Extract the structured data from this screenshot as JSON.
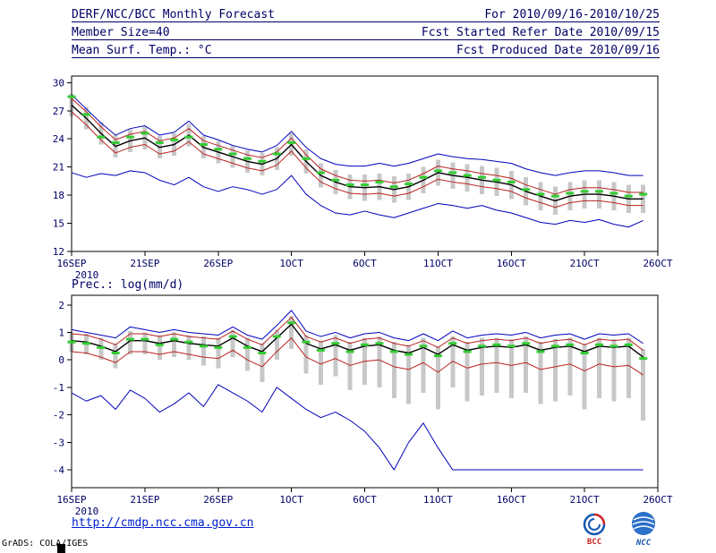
{
  "header": {
    "rows": [
      {
        "left": "DERF/NCC/BCC Monthly Forecast",
        "right": "For 2010/09/16-2010/10/25"
      },
      {
        "left": "Member Size=40",
        "right": "Fcst Started Refer Date 2010/09/15"
      },
      {
        "left": "Mean Surf. Temp.: °C",
        "right": "Fcst Produced Date 2010/09/16"
      }
    ]
  },
  "footer": {
    "url": "http://cmdp.ncc.cma.gov.cn",
    "logo_left": "BCC",
    "logo_right": "NCC",
    "credit": "GrADS: COLA/IGES"
  },
  "colors": {
    "text": "#000066",
    "frame": "#000000",
    "max_min_line": "#0000bb",
    "spread_line": "#bb2222",
    "mean_line": "#000000",
    "obs_dashes": "#33cc33",
    "spread_bars": "#c8c8c8",
    "url": "#0022cc"
  },
  "chart_data": [
    {
      "type": "line",
      "title": "Mean Surf. Temp.: °C",
      "ylabel": "°C",
      "ylim": [
        12,
        30
      ],
      "yticks": [
        12,
        15,
        18,
        21,
        24,
        27,
        30
      ],
      "x_tick_labels": [
        "16SEP",
        "21SEP",
        "26SEP",
        "1OCT",
        "6OCT",
        "11OCT",
        "16OCT",
        "21OCT",
        "26OCT"
      ],
      "x_tick_positions": [
        0,
        5,
        10,
        15,
        20,
        25,
        30,
        35,
        40
      ],
      "x_sub_label": "2010",
      "x_dates": [
        "16SEP",
        "17SEP",
        "18SEP",
        "19SEP",
        "20SEP",
        "21SEP",
        "22SEP",
        "23SEP",
        "24SEP",
        "25SEP",
        "26SEP",
        "27SEP",
        "28SEP",
        "29SEP",
        "30SEP",
        "1OCT",
        "2OCT",
        "3OCT",
        "4OCT",
        "5OCT",
        "6OCT",
        "7OCT",
        "8OCT",
        "9OCT",
        "10OCT",
        "11OCT",
        "12OCT",
        "13OCT",
        "14OCT",
        "15OCT",
        "16OCT",
        "17OCT",
        "18OCT",
        "19OCT",
        "20OCT",
        "21OCT",
        "22OCT",
        "23OCT",
        "24OCT",
        "25OCT"
      ],
      "series": [
        {
          "name": "ensemble max",
          "color": "#0000bb",
          "width": 1,
          "values": [
            28.7,
            27.2,
            25.7,
            24.4,
            25.1,
            25.4,
            24.4,
            24.7,
            25.9,
            24.4,
            23.9,
            23.3,
            22.9,
            22.6,
            23.3,
            24.8,
            23.1,
            21.9,
            21.3,
            21.1,
            21.1,
            21.4,
            21.1,
            21.4,
            21.9,
            22.4,
            22.1,
            21.9,
            21.8,
            21.6,
            21.4,
            20.8,
            20.4,
            20.1,
            20.4,
            20.6,
            20.6,
            20.4,
            20.1,
            20.1
          ]
        },
        {
          "name": "mean plus spread",
          "color": "#bb2222",
          "width": 1,
          "values": [
            28.3,
            26.9,
            25.3,
            23.9,
            24.5,
            24.8,
            23.8,
            24.1,
            25.1,
            23.8,
            23.3,
            22.8,
            22.3,
            22.0,
            22.6,
            24.1,
            22.3,
            20.8,
            20.1,
            19.6,
            19.5,
            19.6,
            19.3,
            19.6,
            20.3,
            21.1,
            20.8,
            20.6,
            20.3,
            20.1,
            19.8,
            19.1,
            18.6,
            18.1,
            18.6,
            18.8,
            18.8,
            18.6,
            18.3,
            18.3
          ]
        },
        {
          "name": "ensemble mean",
          "color": "#000000",
          "width": 1.4,
          "values": [
            27.6,
            26.2,
            24.6,
            23.2,
            23.8,
            24.1,
            23.1,
            23.4,
            24.4,
            23.1,
            22.6,
            22.1,
            21.6,
            21.3,
            21.9,
            23.4,
            21.6,
            20.1,
            19.4,
            18.9,
            18.8,
            18.9,
            18.6,
            18.9,
            19.6,
            20.4,
            20.1,
            19.9,
            19.6,
            19.4,
            19.1,
            18.4,
            17.9,
            17.4,
            17.9,
            18.1,
            18.1,
            17.9,
            17.6,
            17.6
          ]
        },
        {
          "name": "mean minus spread",
          "color": "#bb2222",
          "width": 1,
          "values": [
            26.9,
            25.5,
            23.9,
            22.5,
            23.1,
            23.4,
            22.4,
            22.7,
            23.7,
            22.4,
            21.9,
            21.4,
            20.9,
            20.6,
            21.2,
            22.7,
            20.9,
            19.4,
            18.7,
            18.2,
            18.1,
            18.2,
            17.9,
            18.2,
            18.9,
            19.7,
            19.4,
            19.2,
            18.9,
            18.7,
            18.4,
            17.7,
            17.2,
            16.7,
            17.2,
            17.4,
            17.4,
            17.2,
            16.9,
            16.9
          ]
        },
        {
          "name": "ensemble min",
          "color": "#0000bb",
          "width": 1,
          "values": [
            20.4,
            19.9,
            20.3,
            20.1,
            20.6,
            20.4,
            19.6,
            19.1,
            19.9,
            18.9,
            18.4,
            18.9,
            18.6,
            18.1,
            18.6,
            20.1,
            18.1,
            16.9,
            16.1,
            15.9,
            16.3,
            15.9,
            15.6,
            16.1,
            16.6,
            17.1,
            16.9,
            16.6,
            16.9,
            16.4,
            16.1,
            15.6,
            15.1,
            14.9,
            15.3,
            15.1,
            15.4,
            14.9,
            14.6,
            15.3
          ]
        },
        {
          "name": "observation climatology",
          "color": "#33cc33",
          "style": "dash-marks",
          "width": 3,
          "values": [
            28.5,
            26.6,
            24.2,
            23.6,
            24.2,
            24.6,
            23.6,
            23.9,
            24.2,
            23.4,
            22.9,
            22.4,
            21.9,
            21.6,
            22.4,
            23.6,
            21.9,
            20.4,
            19.6,
            19.1,
            19.1,
            19.4,
            18.9,
            19.2,
            19.9,
            20.6,
            20.4,
            20.1,
            19.9,
            19.6,
            19.4,
            18.6,
            18.1,
            17.9,
            18.2,
            18.4,
            18.4,
            18.2,
            17.9,
            18.1
          ]
        }
      ],
      "bars": {
        "name": "ensemble spread",
        "color": "#c8c8c8",
        "low": [
          26.4,
          25.0,
          23.4,
          22.0,
          22.6,
          22.9,
          21.9,
          22.2,
          23.2,
          21.9,
          21.4,
          20.9,
          20.4,
          20.1,
          20.7,
          22.2,
          20.3,
          18.8,
          18.1,
          17.6,
          17.4,
          17.5,
          17.2,
          17.5,
          18.2,
          19.0,
          18.7,
          18.4,
          18.1,
          17.9,
          17.6,
          16.9,
          16.4,
          15.9,
          16.4,
          16.6,
          16.6,
          16.4,
          16.1,
          16.1
        ],
        "high": [
          28.8,
          27.4,
          25.8,
          24.4,
          25.0,
          25.3,
          24.3,
          24.6,
          25.6,
          24.3,
          23.8,
          23.3,
          22.8,
          22.5,
          23.1,
          24.6,
          22.9,
          21.4,
          20.7,
          20.2,
          20.2,
          20.3,
          20.0,
          20.3,
          21.0,
          21.8,
          21.5,
          21.3,
          21.1,
          20.9,
          20.6,
          19.9,
          19.4,
          18.9,
          19.4,
          19.6,
          19.6,
          19.4,
          19.1,
          19.1
        ]
      }
    },
    {
      "type": "line",
      "title": "Prec.: log(mm/d)",
      "ylabel": "log(mm/d)",
      "ylim": [
        -4,
        2
      ],
      "yticks": [
        -4,
        -3,
        -2,
        -1,
        0,
        1,
        2
      ],
      "x_tick_labels": [
        "16SEP",
        "21SEP",
        "26SEP",
        "1OCT",
        "6OCT",
        "11OCT",
        "16OCT",
        "21OCT",
        "26OCT"
      ],
      "x_tick_positions": [
        0,
        5,
        10,
        15,
        20,
        25,
        30,
        35,
        40
      ],
      "x_sub_label": "2010",
      "x_dates": [
        "16SEP",
        "17SEP",
        "18SEP",
        "19SEP",
        "20SEP",
        "21SEP",
        "22SEP",
        "23SEP",
        "24SEP",
        "25SEP",
        "26SEP",
        "27SEP",
        "28SEP",
        "29SEP",
        "30SEP",
        "1OCT",
        "2OCT",
        "3OCT",
        "4OCT",
        "5OCT",
        "6OCT",
        "7OCT",
        "8OCT",
        "9OCT",
        "10OCT",
        "11OCT",
        "12OCT",
        "13OCT",
        "14OCT",
        "15OCT",
        "16OCT",
        "17OCT",
        "18OCT",
        "19OCT",
        "20OCT",
        "21OCT",
        "22OCT",
        "23OCT",
        "24OCT",
        "25OCT"
      ],
      "series": [
        {
          "name": "ensemble max",
          "color": "#0000bb",
          "width": 1,
          "values": [
            1.1,
            1.0,
            0.9,
            0.8,
            1.2,
            1.1,
            1.0,
            1.1,
            1.0,
            0.95,
            0.9,
            1.2,
            0.9,
            0.75,
            1.25,
            1.8,
            1.05,
            0.85,
            1.0,
            0.8,
            0.95,
            1.0,
            0.8,
            0.7,
            0.95,
            0.7,
            1.05,
            0.8,
            0.9,
            0.95,
            0.9,
            1.0,
            0.8,
            0.9,
            0.95,
            0.75,
            0.95,
            0.9,
            0.95,
            0.6
          ]
        },
        {
          "name": "mean plus spread",
          "color": "#bb2222",
          "width": 1,
          "values": [
            0.95,
            0.9,
            0.75,
            0.55,
            0.95,
            0.95,
            0.85,
            0.95,
            0.85,
            0.8,
            0.75,
            1.05,
            0.75,
            0.55,
            1.05,
            1.55,
            0.85,
            0.65,
            0.8,
            0.6,
            0.75,
            0.8,
            0.6,
            0.5,
            0.7,
            0.45,
            0.8,
            0.6,
            0.7,
            0.75,
            0.7,
            0.8,
            0.6,
            0.7,
            0.75,
            0.55,
            0.75,
            0.7,
            0.75,
            0.35
          ]
        },
        {
          "name": "ensemble mean",
          "color": "#000000",
          "width": 1.4,
          "values": [
            0.7,
            0.65,
            0.5,
            0.3,
            0.7,
            0.7,
            0.6,
            0.7,
            0.6,
            0.55,
            0.5,
            0.8,
            0.5,
            0.3,
            0.8,
            1.3,
            0.6,
            0.4,
            0.55,
            0.35,
            0.5,
            0.55,
            0.35,
            0.25,
            0.45,
            0.2,
            0.55,
            0.35,
            0.45,
            0.5,
            0.45,
            0.55,
            0.35,
            0.45,
            0.5,
            0.3,
            0.5,
            0.45,
            0.5,
            0.1
          ]
        },
        {
          "name": "mean minus spread",
          "color": "#bb2222",
          "width": 1,
          "values": [
            0.3,
            0.25,
            0.1,
            -0.1,
            0.3,
            0.3,
            0.2,
            0.3,
            0.2,
            0.1,
            0.05,
            0.35,
            0.0,
            -0.25,
            0.3,
            0.8,
            0.1,
            -0.15,
            0.05,
            -0.2,
            -0.05,
            0.0,
            -0.25,
            -0.35,
            -0.1,
            -0.45,
            -0.05,
            -0.3,
            -0.15,
            -0.1,
            -0.2,
            -0.1,
            -0.35,
            -0.25,
            -0.15,
            -0.4,
            -0.15,
            -0.25,
            -0.2,
            -0.55
          ]
        },
        {
          "name": "ensemble min",
          "color": "#0000bb",
          "width": 1,
          "values": [
            -1.2,
            -1.5,
            -1.3,
            -1.8,
            -1.1,
            -1.4,
            -1.9,
            -1.6,
            -1.2,
            -1.7,
            -0.9,
            -1.2,
            -1.5,
            -1.9,
            -1.0,
            -1.4,
            -1.8,
            -2.1,
            -1.9,
            -2.2,
            -2.6,
            -3.2,
            -4.0,
            -3.0,
            -2.3,
            -3.2,
            -4.0,
            -4.0,
            -4.0,
            -4.0,
            -4.0,
            -4.0,
            -4.0,
            -4.0,
            -4.0,
            -4.0,
            -4.0,
            -4.0,
            -4.0,
            -4.0
          ]
        },
        {
          "name": "observation climatology",
          "color": "#33cc33",
          "style": "dash-marks",
          "width": 3,
          "values": [
            0.65,
            0.6,
            0.45,
            0.25,
            0.75,
            0.75,
            0.55,
            0.75,
            0.65,
            0.5,
            0.45,
            0.85,
            0.45,
            0.25,
            0.85,
            1.35,
            0.65,
            0.35,
            0.6,
            0.3,
            0.55,
            0.6,
            0.3,
            0.2,
            0.5,
            0.15,
            0.6,
            0.3,
            0.5,
            0.55,
            0.5,
            0.6,
            0.3,
            0.5,
            0.55,
            0.25,
            0.55,
            0.5,
            0.55,
            0.05
          ]
        }
      ],
      "bars": {
        "name": "ensemble spread",
        "color": "#c8c8c8",
        "low": [
          0.3,
          0.2,
          0.0,
          -0.3,
          0.2,
          0.2,
          0.0,
          0.1,
          0.0,
          -0.2,
          -0.3,
          0.1,
          -0.4,
          -0.8,
          0.0,
          0.4,
          -0.5,
          -0.9,
          -0.6,
          -1.1,
          -0.9,
          -1.0,
          -1.4,
          -1.6,
          -1.2,
          -1.8,
          -1.0,
          -1.5,
          -1.3,
          -1.2,
          -1.4,
          -1.2,
          -1.6,
          -1.5,
          -1.3,
          -1.8,
          -1.4,
          -1.5,
          -1.4,
          -2.2
        ],
        "high": [
          1.0,
          0.95,
          0.8,
          0.6,
          1.05,
          1.0,
          0.9,
          1.0,
          0.9,
          0.85,
          0.8,
          1.1,
          0.8,
          0.6,
          1.1,
          1.6,
          0.9,
          0.7,
          0.9,
          0.65,
          0.8,
          0.85,
          0.65,
          0.55,
          0.8,
          0.5,
          0.85,
          0.65,
          0.8,
          0.8,
          0.75,
          0.85,
          0.65,
          0.75,
          0.8,
          0.6,
          0.8,
          0.75,
          0.8,
          0.4
        ]
      }
    }
  ]
}
